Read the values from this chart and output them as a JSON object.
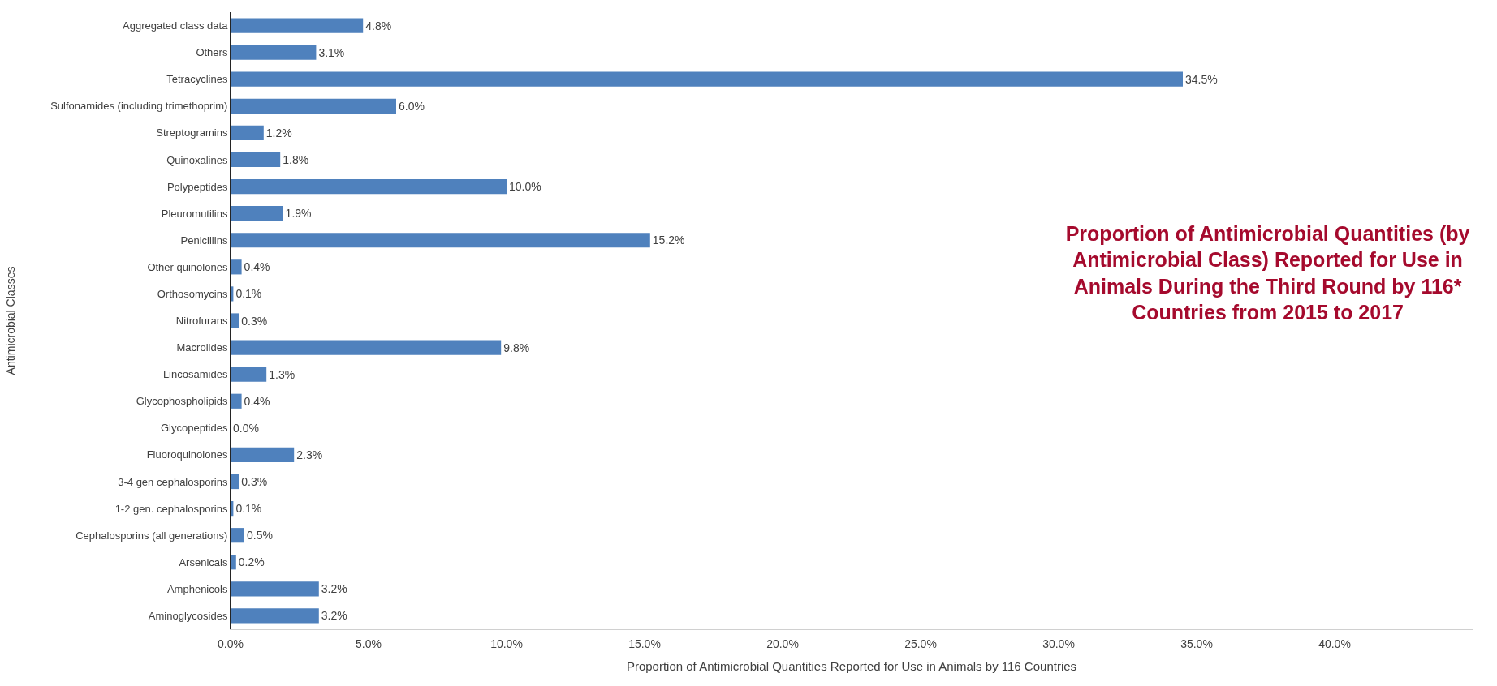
{
  "chart_data": {
    "type": "bar",
    "orientation": "horizontal",
    "title": "Proportion of Antimicrobial Quantities (by Antimicrobial Class) Reported for Use in Animals During the Third Round by 116* Countries from 2015 to 2017",
    "xlabel": "Proportion of Antimicrobial Quantities Reported for Use in Animals by 116 Countries",
    "ylabel": "Antimicrobial Classes",
    "categories": [
      "Aggregated class data",
      "Others",
      "Tetracyclines",
      "Sulfonamides (including trimethoprim)",
      "Streptogramins",
      "Quinoxalines",
      "Polypeptides",
      "Pleuromutilins",
      "Penicillins",
      "Other quinolones",
      "Orthosomycins",
      "Nitrofurans",
      "Macrolides",
      "Lincosamides",
      "Glycophospholipids",
      "Glycopeptides",
      "Fluoroquinolones",
      "3-4 gen cephalosporins",
      "1-2 gen. cephalosporins",
      "Cephalosporins (all generations)",
      "Arsenicals",
      "Amphenicols",
      "Aminoglycosides"
    ],
    "values": [
      4.8,
      3.1,
      34.5,
      6.0,
      1.2,
      1.8,
      10.0,
      1.9,
      15.2,
      0.4,
      0.1,
      0.3,
      9.8,
      1.3,
      0.4,
      0.0,
      2.3,
      0.3,
      0.1,
      0.5,
      0.2,
      3.2,
      3.2
    ],
    "value_labels": [
      "4.8%",
      "3.1%",
      "34.5%",
      "6.0%",
      "1.2%",
      "1.8%",
      "10.0%",
      "1.9%",
      "15.2%",
      "0.4%",
      "0.1%",
      "0.3%",
      "9.8%",
      "1.3%",
      "0.4%",
      "0.0%",
      "2.3%",
      "0.3%",
      "0.1%",
      "0.5%",
      "0.2%",
      "3.2%",
      "3.2%"
    ],
    "color": "#4f81bd",
    "xlim": [
      0,
      45
    ],
    "xticks": [
      {
        "value": 0,
        "label": "0.0%"
      },
      {
        "value": 5,
        "label": "5.0%"
      },
      {
        "value": 10,
        "label": "10.0%"
      },
      {
        "value": 15,
        "label": "15.0%"
      },
      {
        "value": 20,
        "label": "20.0%"
      },
      {
        "value": 25,
        "label": "25.0%"
      },
      {
        "value": 30,
        "label": "30.0%"
      },
      {
        "value": 35,
        "label": "35.0%"
      },
      {
        "value": 40,
        "label": "40.0%"
      }
    ],
    "grid": "x",
    "legend": false
  }
}
